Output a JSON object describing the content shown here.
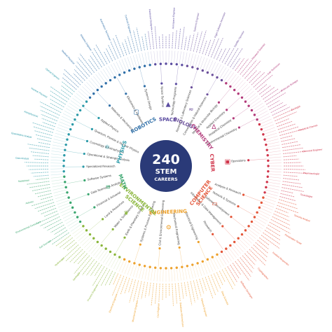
{
  "center": {
    "number": "240",
    "line1": "STEM",
    "line2": "CAREERS",
    "color": "#2a3a78"
  },
  "categories": [
    {
      "name": "SPACE",
      "color": "#5a4ba0",
      "start": -8,
      "end": 12,
      "icon": "rocket-icon",
      "subs": [
        "Space Systems",
        "Technology Programs"
      ]
    },
    {
      "name": "BIOLOGY",
      "color": "#6b4f9b",
      "start": 12,
      "end": 36,
      "icon": "dna-icon",
      "subs": [
        "Research & Laboratory Sciences",
        "Conservation & Natural Sciences"
      ]
    },
    {
      "name": "CHEMISTRY",
      "color": "#b23a7a",
      "start": 36,
      "end": 66,
      "icon": "flask-icon",
      "subs": [
        "Medical & Molecular Biology",
        "Applied Chemistry",
        "Analytical Chemistry",
        "Environmental Chemistry"
      ]
    },
    {
      "name": "CYBER",
      "color": "#d0344a",
      "start": 66,
      "end": 106,
      "icon": "lock-icon",
      "subs": [
        "Operations"
      ]
    },
    {
      "name": "COMPUTER SCIENCE",
      "color": "#e4573a",
      "start": 106,
      "end": 150,
      "icon": "monitor-icon",
      "subs": [
        "Analysis & Research",
        "Network & Systems",
        "Software Development",
        "Information & Data Management",
        "Research"
      ]
    },
    {
      "name": "ENGINEERING",
      "color": "#eda12c",
      "start": 150,
      "end": 205,
      "icon": "gear-icon",
      "subs": [
        "Electrical Engineering",
        "Mechanical Engineering",
        "Civil & Environmental Engineering",
        "Systems & Process Engineering"
      ]
    },
    {
      "name": "ENVIRONMENTAL SCIENCE",
      "color": "#8ab63b",
      "start": 205,
      "end": 235,
      "icon": "leaf-icon",
      "subs": [
        "Earth & Planetary Science",
        "Water & Soil Science",
        "Land & Resources"
      ]
    },
    {
      "name": "MATH",
      "color": "#3aa66f",
      "start": 235,
      "end": 265,
      "icon": "abacus-icon",
      "subs": [
        "Financial & Actuarial",
        "Data Science & Analytics",
        "Software Systems"
      ]
    },
    {
      "name": "PHYSICS",
      "color": "#2b9aa8",
      "start": 265,
      "end": 310,
      "icon": "atom-icon",
      "subs": [
        "Specialized Research",
        "Operational & Strategic Analysis",
        "Cosmology & Astrophysics",
        "Quantum, Particle & Nuclear Physics",
        "Applied Physics"
      ]
    },
    {
      "name": "ROBOTICS",
      "color": "#2f6fa8",
      "start": 310,
      "end": 352,
      "icon": "robot-icon",
      "subs": [
        "Materials & Mechanical",
        "Electronics & Hardware",
        "Systems Design"
      ]
    }
  ],
  "outer_labels": [
    "Aerospace Engineer",
    "Systems Engineer",
    "Flight Software Developer",
    "Satellite Operator",
    "Research Scientist",
    "Lab Technician",
    "Molecular Biologist",
    "Ecologist",
    "Analytical Chemist",
    "Chemical Engineer",
    "Pharmacologist",
    "Toxicologist",
    "Security Analyst",
    "Penetration Tester",
    "Incident Responder",
    "Cryptographer",
    "Software Developer",
    "Data Scientist",
    "Network Engineer",
    "Database Administrator",
    "Civil Engineer",
    "Mechanical Engineer",
    "Electrical Engineer",
    "Process Engineer",
    "Geologist",
    "Hydrologist",
    "Soil Scientist",
    "Environmental Consultant",
    "Actuary",
    "Statistician",
    "Data Analyst",
    "Quantitative Analyst",
    "Astrophysicist",
    "Nuclear Physicist",
    "Optical Engineer",
    "Medical Physicist",
    "Robotics Engineer",
    "Automation Technician",
    "Controls Engineer",
    "Hardware Designer"
  ]
}
